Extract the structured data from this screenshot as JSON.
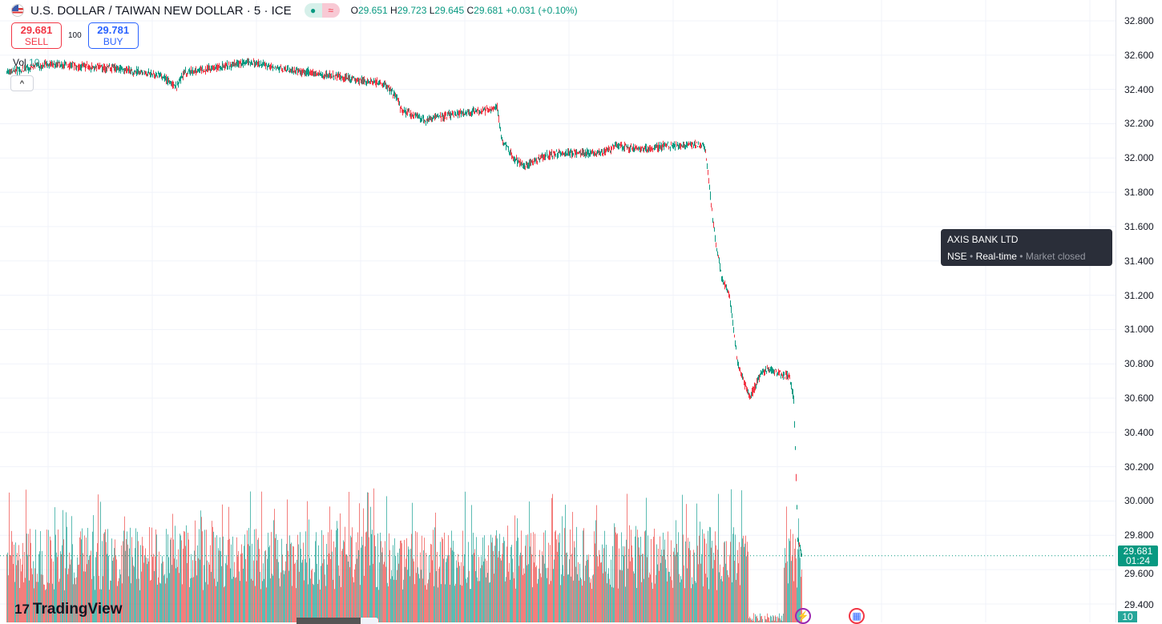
{
  "header": {
    "title": "U.S. DOLLAR / TAIWAN NEW DOLLAR · 5 · ICE",
    "flag_icon": "us-flag-icon",
    "market_icon": "≈",
    "ohlc": {
      "o_label": "O",
      "o": "29.651",
      "h_label": "H",
      "h": "29.723",
      "l_label": "L",
      "l": "29.645",
      "c_label": "C",
      "c": "29.681",
      "change": "+0.031 (+0.10%)"
    }
  },
  "trade": {
    "sell_price": "29.681",
    "sell_label": "SELL",
    "quantity": "100",
    "buy_price": "29.781",
    "buy_label": "BUY"
  },
  "volume_legend": {
    "label": "Vol",
    "value": "10"
  },
  "collapse_label": "^",
  "price_axis": {
    "ticks": [
      "32.800",
      "32.600",
      "32.400",
      "32.200",
      "32.000",
      "31.800",
      "31.600",
      "31.400",
      "31.200",
      "31.000",
      "30.800",
      "30.600",
      "30.400",
      "30.200",
      "30.000",
      "29.800",
      "29.600",
      "29.400"
    ],
    "last_price": "29.681",
    "countdown": "01:24",
    "volume_last": "10"
  },
  "tooltip": {
    "title": "AXIS BANK LTD",
    "exchange": "NSE",
    "sep": "•",
    "status": "Real-time",
    "market": "Market closed"
  },
  "logo": "TradingView",
  "colors": {
    "up": "#089981",
    "down": "#f23645",
    "vol_up": "#26a69a",
    "vol_down": "#ef5350"
  },
  "chart_data": {
    "type": "candlestick",
    "ylim": [
      29.4,
      32.8
    ],
    "close_path": [
      [
        0,
        32.5
      ],
      [
        52,
        32.55
      ],
      [
        142,
        32.52
      ],
      [
        192,
        32.48
      ],
      [
        212,
        32.42
      ],
      [
        222,
        32.5
      ],
      [
        302,
        32.56
      ],
      [
        342,
        32.52
      ],
      [
        422,
        32.47
      ],
      [
        472,
        32.43
      ],
      [
        487,
        32.35
      ],
      [
        492,
        32.28
      ],
      [
        522,
        32.22
      ],
      [
        552,
        32.25
      ],
      [
        597,
        32.28
      ],
      [
        612,
        32.3
      ],
      [
        617,
        32.12
      ],
      [
        632,
        32.0
      ],
      [
        647,
        31.95
      ],
      [
        672,
        32.02
      ],
      [
        702,
        32.03
      ],
      [
        742,
        32.03
      ],
      [
        762,
        32.07
      ],
      [
        792,
        32.05
      ],
      [
        822,
        32.07
      ],
      [
        867,
        32.08
      ],
      [
        872,
        32.05
      ],
      [
        882,
        31.6
      ],
      [
        892,
        31.3
      ],
      [
        902,
        31.2
      ],
      [
        912,
        30.8
      ],
      [
        927,
        30.6
      ],
      [
        942,
        30.75
      ],
      [
        952,
        30.77
      ],
      [
        977,
        30.72
      ],
      [
        982,
        30.6
      ],
      [
        984,
        30.3
      ],
      [
        987,
        29.78
      ],
      [
        992,
        29.68
      ]
    ]
  }
}
